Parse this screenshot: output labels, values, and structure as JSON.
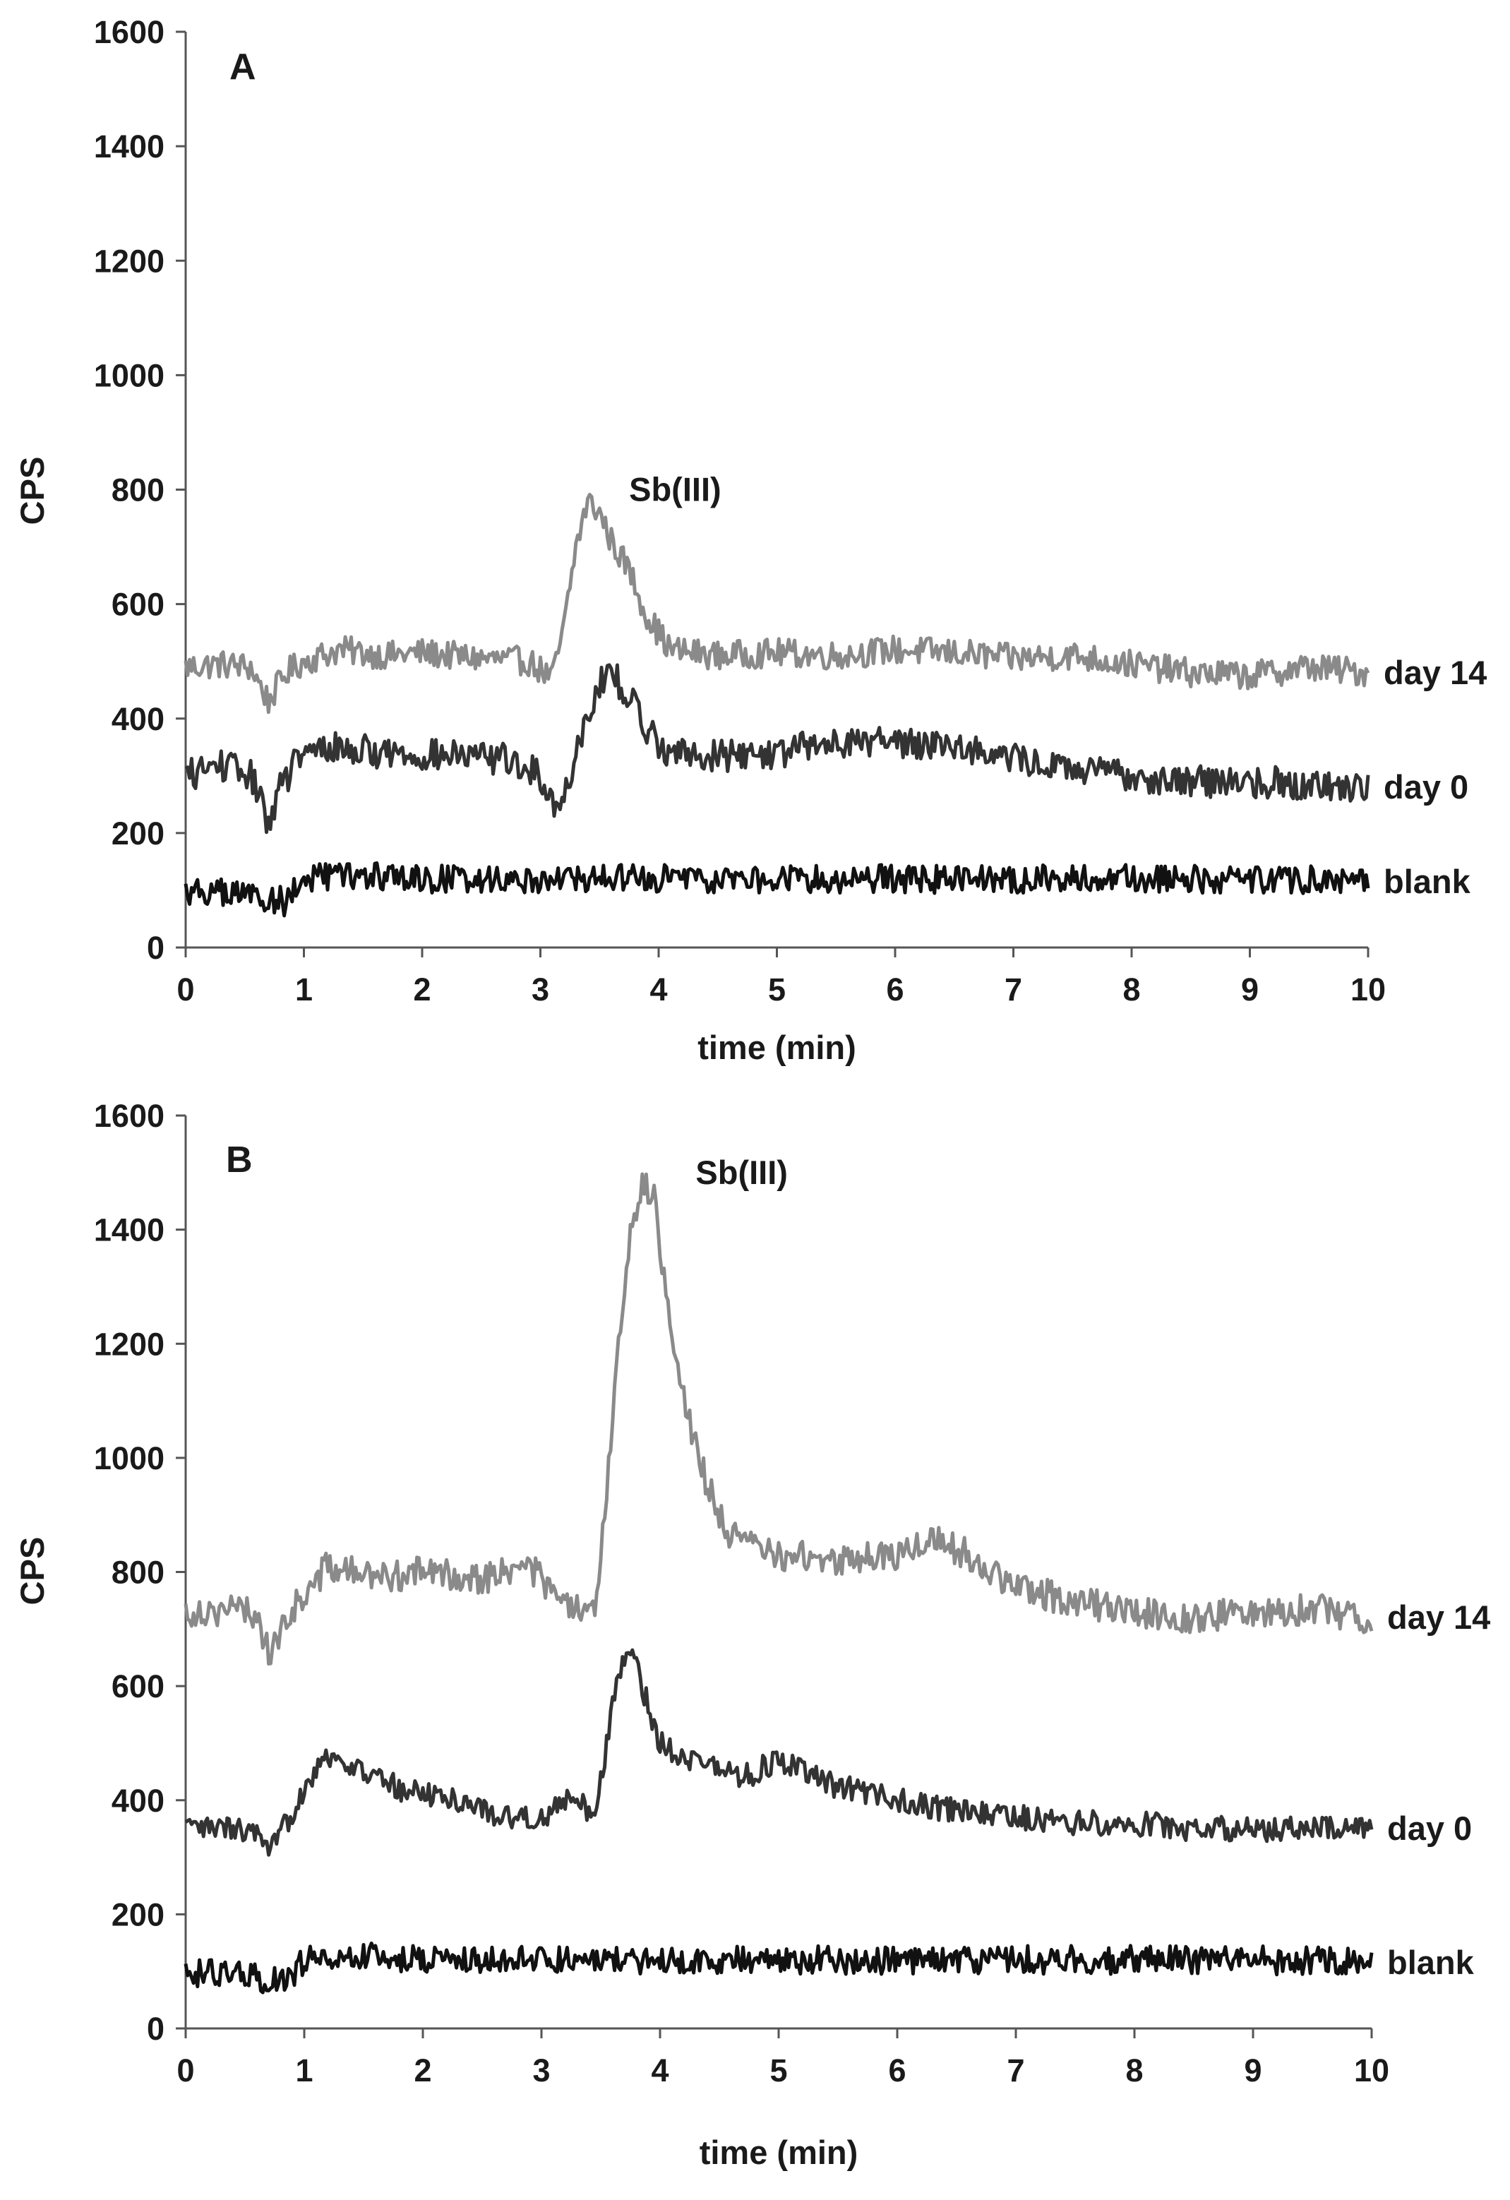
{
  "chart_data": [
    {
      "type": "line",
      "panel_label": "A",
      "xlabel": "time (min)",
      "ylabel": "CPS",
      "xlim": [
        0,
        10
      ],
      "ylim": [
        0,
        1600
      ],
      "xticks": [
        0,
        1,
        2,
        3,
        4,
        5,
        6,
        7,
        8,
        9,
        10
      ],
      "yticks": [
        0,
        200,
        400,
        600,
        800,
        1000,
        1200,
        1400,
        1600
      ],
      "grid": false,
      "annotations": [
        {
          "text": "Sb(III)",
          "x": 3.75,
          "y": 780
        }
      ],
      "series": [
        {
          "name": "day 14",
          "color": "#8a8a8a",
          "x": [
            0,
            0.3,
            0.55,
            0.7,
            0.85,
            1.0,
            1.3,
            1.7,
            2.0,
            2.5,
            2.9,
            3.1,
            3.2,
            3.3,
            3.4,
            3.5,
            3.6,
            3.75,
            3.9,
            4.1,
            4.5,
            5.0,
            5.5,
            6.0,
            6.5,
            7.0,
            7.5,
            8.0,
            8.5,
            9.0,
            9.5,
            10.0
          ],
          "y": [
            490,
            495,
            490,
            430,
            480,
            500,
            520,
            510,
            515,
            505,
            500,
            470,
            560,
            700,
            780,
            760,
            710,
            660,
            580,
            520,
            510,
            515,
            510,
            520,
            515,
            505,
            510,
            495,
            480,
            475,
            490,
            480
          ],
          "noise": 25
        },
        {
          "name": "day 0",
          "color": "#333333",
          "x": [
            0,
            0.3,
            0.55,
            0.7,
            0.8,
            0.95,
            1.2,
            1.7,
            2.2,
            2.7,
            3.0,
            3.15,
            3.25,
            3.35,
            3.5,
            3.6,
            3.75,
            3.9,
            4.1,
            4.5,
            5.0,
            5.5,
            6.0,
            6.5,
            7.0,
            7.5,
            8.0,
            8.5,
            9.0,
            9.5,
            10.0
          ],
          "y": [
            300,
            320,
            300,
            220,
            280,
            330,
            350,
            340,
            335,
            330,
            300,
            240,
            300,
            380,
            460,
            480,
            440,
            380,
            340,
            335,
            340,
            360,
            360,
            355,
            330,
            310,
            300,
            290,
            290,
            285,
            280
          ],
          "noise": 28
        },
        {
          "name": "blank",
          "color": "#111111",
          "x": [
            0,
            0.3,
            0.6,
            0.85,
            1.0,
            1.5,
            2.0,
            3.0,
            4.0,
            5.0,
            6.0,
            7.0,
            8.0,
            9.0,
            10.0
          ],
          "y": [
            100,
            95,
            90,
            80,
            120,
            125,
            120,
            120,
            120,
            120,
            120,
            120,
            120,
            120,
            115
          ],
          "noise": 25
        }
      ]
    },
    {
      "type": "line",
      "panel_label": "B",
      "xlabel": "time (min)",
      "ylabel": "CPS",
      "xlim": [
        0,
        10
      ],
      "ylim": [
        0,
        1600
      ],
      "xticks": [
        0,
        1,
        2,
        3,
        4,
        5,
        6,
        7,
        8,
        9,
        10
      ],
      "yticks": [
        0,
        200,
        400,
        600,
        800,
        1000,
        1200,
        1400,
        1600
      ],
      "grid": false,
      "annotations": [
        {
          "text": "Sb(III)",
          "x": 4.3,
          "y": 1480
        }
      ],
      "series": [
        {
          "name": "day 14",
          "color": "#8a8a8a",
          "x": [
            0,
            0.4,
            0.6,
            0.72,
            0.85,
            1.0,
            1.2,
            1.6,
            2.0,
            2.5,
            2.9,
            3.2,
            3.45,
            3.55,
            3.65,
            3.75,
            3.85,
            3.95,
            4.05,
            4.2,
            4.4,
            4.6,
            5.0,
            5.5,
            6.0,
            6.3,
            6.6,
            7.0,
            7.5,
            8.0,
            8.5,
            9.0,
            9.5,
            10.0
          ],
          "y": [
            730,
            735,
            725,
            650,
            720,
            760,
            810,
            790,
            800,
            790,
            810,
            740,
            720,
            950,
            1200,
            1400,
            1480,
            1450,
            1300,
            1100,
            950,
            860,
            830,
            820,
            830,
            860,
            830,
            770,
            750,
            730,
            720,
            730,
            735,
            720
          ],
          "noise": 28
        },
        {
          "name": "day 0",
          "color": "#333333",
          "x": [
            0,
            0.4,
            0.6,
            0.7,
            0.85,
            1.0,
            1.15,
            1.4,
            1.8,
            2.3,
            2.7,
            3.0,
            3.2,
            3.45,
            3.55,
            3.65,
            3.75,
            3.85,
            4.0,
            4.3,
            4.7,
            5.0,
            5.4,
            6.0,
            6.5,
            7.0,
            7.5,
            8.0,
            8.5,
            9.0,
            9.5,
            10.0
          ],
          "y": [
            350,
            350,
            340,
            300,
            360,
            420,
            480,
            460,
            420,
            400,
            370,
            370,
            400,
            380,
            500,
            620,
            670,
            600,
            500,
            470,
            440,
            470,
            430,
            400,
            380,
            370,
            360,
            360,
            350,
            350,
            350,
            350
          ],
          "noise": 22
        },
        {
          "name": "blank",
          "color": "#111111",
          "x": [
            0,
            0.3,
            0.6,
            0.85,
            1.0,
            1.5,
            2.0,
            3.0,
            4.0,
            5.0,
            6.0,
            7.0,
            8.0,
            9.0,
            10.0
          ],
          "y": [
            100,
            95,
            90,
            80,
            120,
            125,
            120,
            120,
            120,
            120,
            120,
            120,
            120,
            120,
            115
          ],
          "noise": 25
        }
      ]
    }
  ]
}
